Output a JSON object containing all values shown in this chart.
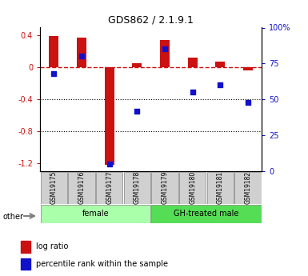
{
  "title": "GDS862 / 2.1.9.1",
  "samples": [
    "GSM19175",
    "GSM19176",
    "GSM19177",
    "GSM19178",
    "GSM19179",
    "GSM19180",
    "GSM19181",
    "GSM19182"
  ],
  "log_ratio": [
    0.39,
    0.375,
    -1.22,
    0.05,
    0.34,
    0.12,
    0.07,
    -0.04
  ],
  "percentile_rank": [
    68,
    80,
    5,
    42,
    85,
    55,
    60,
    48
  ],
  "groups": [
    {
      "label": "female",
      "color": "#aaffaa",
      "start": 0,
      "end": 3
    },
    {
      "label": "GH-treated male",
      "color": "#55dd55",
      "start": 4,
      "end": 7
    }
  ],
  "ylim_left": [
    -1.3,
    0.5
  ],
  "ylim_right": [
    0,
    100
  ],
  "yticks_left": [
    -1.2,
    -0.8,
    -0.4,
    0.0,
    0.4
  ],
  "yticks_right": [
    0,
    25,
    50,
    75,
    100
  ],
  "ytick_right_labels": [
    "0",
    "25",
    "50",
    "75",
    "100%"
  ],
  "bar_color": "#cc1111",
  "dot_color": "#1111cc",
  "dotted_lines": [
    -0.4,
    -0.8
  ],
  "legend_log_ratio": "log ratio",
  "legend_percentile": "percentile rank within the sample",
  "other_label": "other",
  "gray_box_color": "#d0d0d0"
}
